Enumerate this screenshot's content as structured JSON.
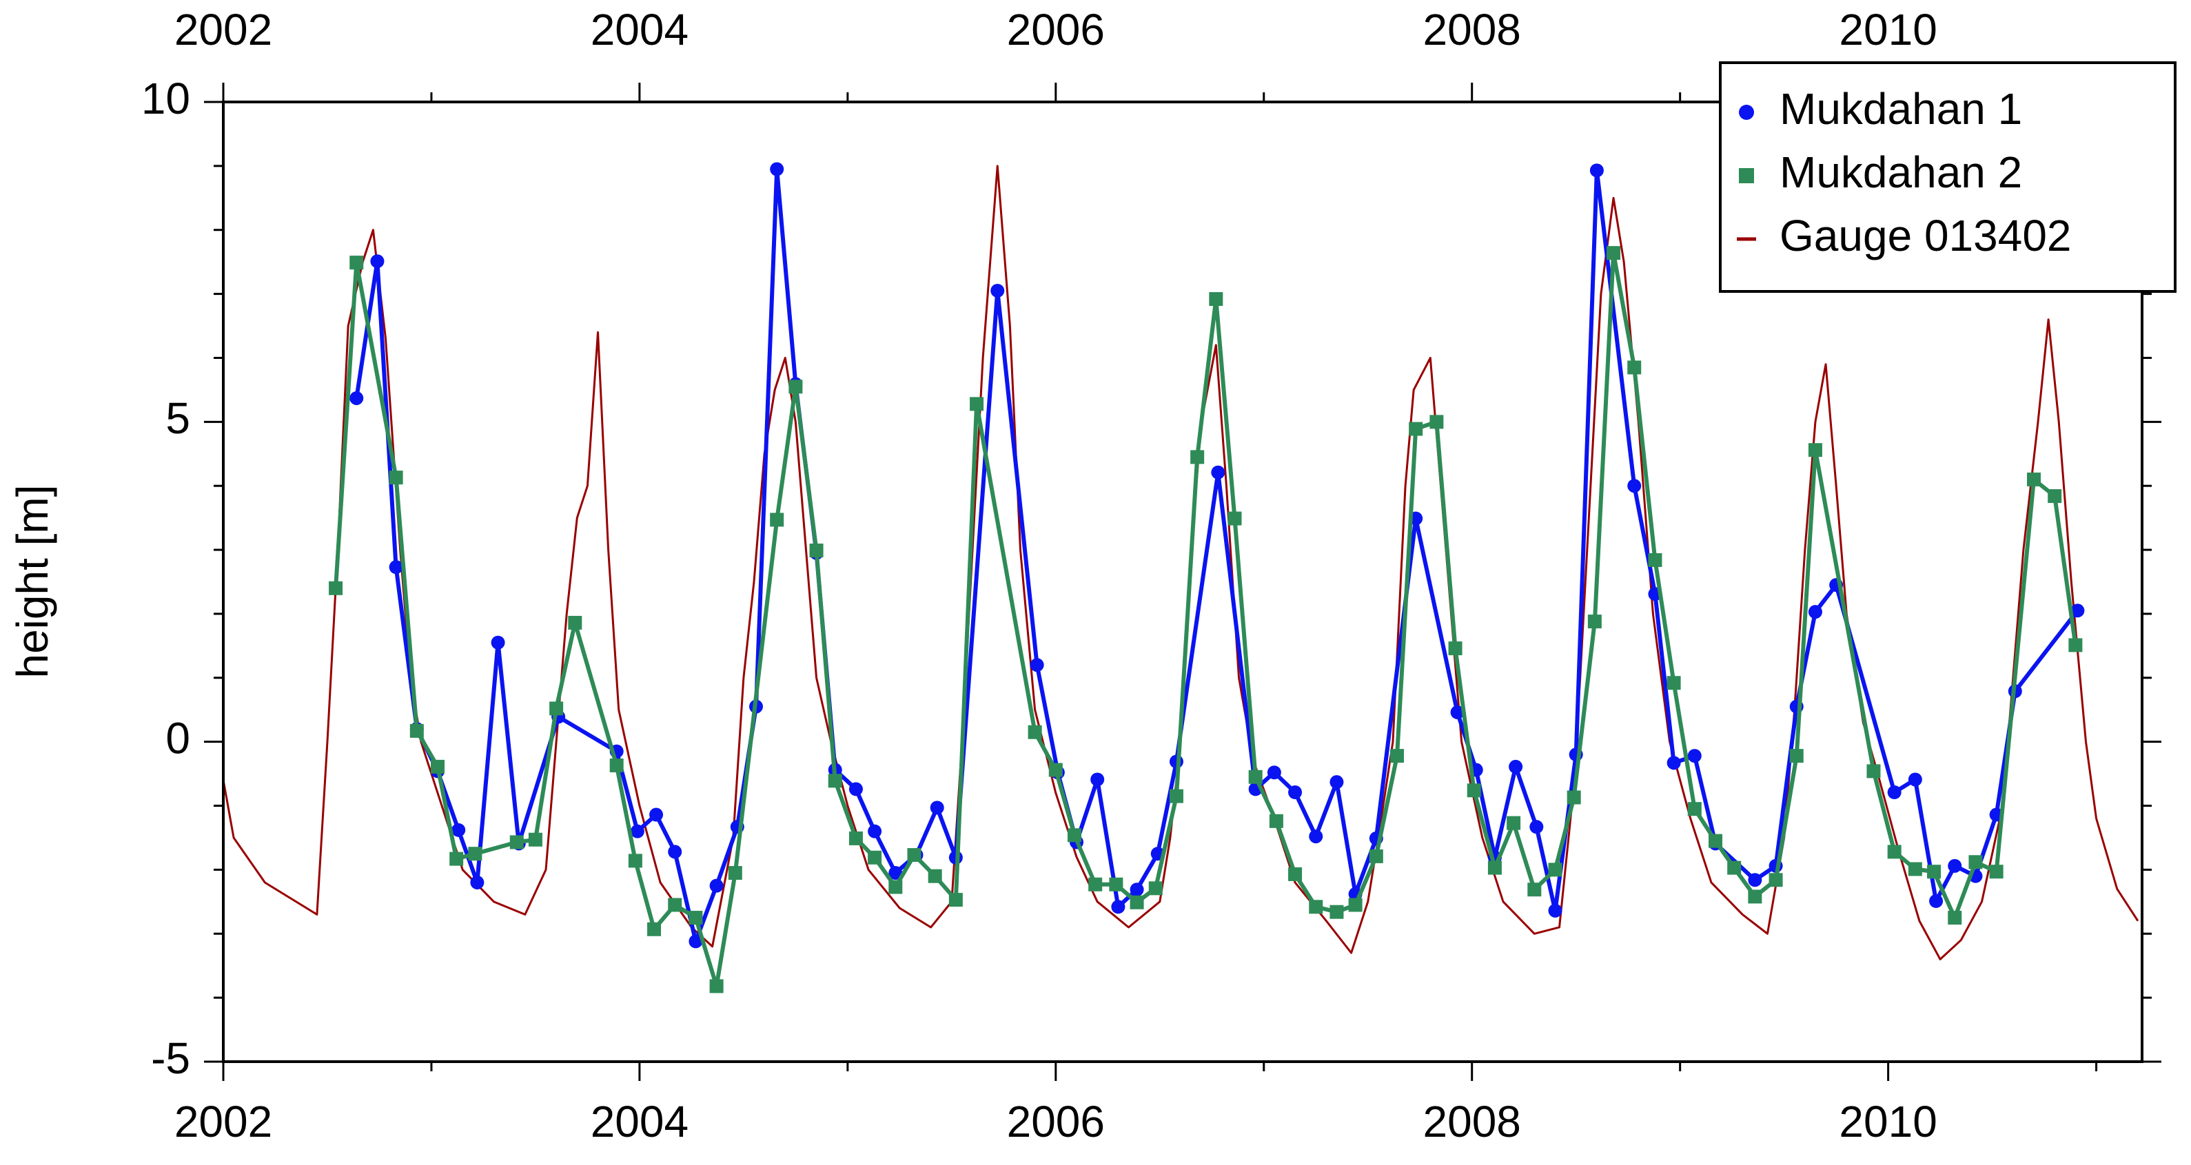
{
  "chart_data": {
    "type": "line",
    "y_label": "height [m]",
    "xlim": [
      2002,
      2011.22
    ],
    "ylim": [
      -5,
      10
    ],
    "xticks": [
      2002,
      2004,
      2006,
      2008,
      2010
    ],
    "xminor_ticks": [
      2003,
      2005,
      2007,
      2009,
      2011
    ],
    "yticks": [
      -5,
      0,
      5,
      10
    ],
    "yminor_ticks": [
      -4,
      -3,
      -2,
      -1,
      1,
      2,
      3,
      4,
      6,
      7,
      8,
      9
    ],
    "legend": "upper right",
    "series": [
      {
        "name": "Mukdahan 1",
        "color": "#0a14f0",
        "marker": "circle",
        "x": [
          2002.64,
          2002.74,
          2002.83,
          2002.93,
          2003.03,
          2003.13,
          2003.22,
          2003.32,
          2003.42,
          2003.61,
          2003.89,
          2003.99,
          2004.08,
          2004.17,
          2004.27,
          2004.37,
          2004.47,
          2004.56,
          2004.66,
          2004.75,
          2004.85,
          2004.94,
          2005.04,
          2005.13,
          2005.23,
          2005.33,
          2005.43,
          2005.52,
          2005.72,
          2005.91,
          2006.01,
          2006.1,
          2006.2,
          2006.3,
          2006.39,
          2006.49,
          2006.58,
          2006.78,
          2006.96,
          2007.05,
          2007.15,
          2007.25,
          2007.35,
          2007.44,
          2007.54,
          2007.73,
          2007.93,
          2008.02,
          2008.11,
          2008.21,
          2008.31,
          2008.4,
          2008.5,
          2008.6,
          2008.78,
          2008.88,
          2008.97,
          2009.07,
          2009.17,
          2009.36,
          2009.46,
          2009.56,
          2009.65,
          2009.75,
          2010.03,
          2010.13,
          2010.23,
          2010.32,
          2010.42,
          2010.52,
          2010.61,
          2010.91
        ],
        "values": [
          5.37,
          7.51,
          2.73,
          0.2,
          -0.46,
          -1.38,
          -2.2,
          1.55,
          -1.59,
          0.39,
          -0.15,
          -1.4,
          -1.14,
          -1.72,
          -3.12,
          -2.25,
          -1.33,
          0.55,
          8.95,
          5.59,
          2.95,
          -0.44,
          -0.74,
          -1.4,
          -2.05,
          -1.77,
          -1.03,
          -1.81,
          7.05,
          1.2,
          -0.48,
          -1.57,
          -0.59,
          -2.58,
          -2.31,
          -1.75,
          -0.31,
          4.21,
          -0.74,
          -0.48,
          -0.79,
          -1.48,
          -0.63,
          -2.38,
          -1.51,
          3.49,
          0.46,
          -0.44,
          -1.81,
          -0.39,
          -1.33,
          -2.64,
          -0.2,
          8.93,
          4.0,
          2.31,
          -0.33,
          -0.22,
          -1.59,
          -2.16,
          -1.94,
          0.55,
          2.03,
          2.45,
          -0.79,
          -0.59,
          -2.49,
          -1.94,
          -2.1,
          -1.14,
          0.79,
          2.05
        ]
      },
      {
        "name": "Mukdahan 2",
        "color": "#2e8b57",
        "marker": "square",
        "x": [
          2002.54,
          2002.64,
          2002.83,
          2002.93,
          2003.03,
          2003.12,
          2003.21,
          2003.41,
          2003.5,
          2003.6,
          2003.69,
          2003.89,
          2003.98,
          2004.07,
          2004.17,
          2004.27,
          2004.37,
          2004.46,
          2004.66,
          2004.75,
          2004.85,
          2004.94,
          2005.04,
          2005.13,
          2005.23,
          2005.32,
          2005.42,
          2005.52,
          2005.62,
          2005.9,
          2006.0,
          2006.09,
          2006.19,
          2006.29,
          2006.39,
          2006.48,
          2006.58,
          2006.68,
          2006.77,
          2006.86,
          2006.96,
          2007.06,
          2007.15,
          2007.25,
          2007.35,
          2007.44,
          2007.54,
          2007.64,
          2007.73,
          2007.83,
          2007.92,
          2008.01,
          2008.11,
          2008.2,
          2008.3,
          2008.4,
          2008.49,
          2008.59,
          2008.68,
          2008.78,
          2008.88,
          2008.97,
          2009.07,
          2009.17,
          2009.26,
          2009.36,
          2009.46,
          2009.56,
          2009.65,
          2009.93,
          2010.03,
          2010.13,
          2010.22,
          2010.32,
          2010.42,
          2010.52,
          2010.7,
          2010.8,
          2010.9
        ],
        "values": [
          2.4,
          7.49,
          4.13,
          0.17,
          -0.39,
          -1.83,
          -1.75,
          -1.57,
          -1.53,
          0.52,
          1.86,
          -0.37,
          -1.86,
          -2.93,
          -2.55,
          -2.75,
          -3.82,
          -2.05,
          3.47,
          5.55,
          2.99,
          -0.61,
          -1.51,
          -1.81,
          -2.27,
          -1.77,
          -2.1,
          -2.47,
          5.28,
          0.15,
          -0.44,
          -1.46,
          -2.23,
          -2.23,
          -2.51,
          -2.29,
          -0.85,
          4.45,
          6.92,
          3.49,
          -0.55,
          -1.24,
          -2.07,
          -2.58,
          -2.66,
          -2.55,
          -1.79,
          -0.22,
          4.89,
          5.0,
          1.46,
          -0.76,
          -1.97,
          -1.27,
          -2.31,
          -2.0,
          -0.87,
          1.88,
          7.64,
          5.85,
          2.84,
          0.92,
          -1.05,
          -1.55,
          -1.97,
          -2.42,
          -2.16,
          -0.22,
          4.56,
          -0.46,
          -1.72,
          -1.99,
          -2.03,
          -2.75,
          -1.88,
          -2.03,
          4.1,
          3.84,
          1.51
        ]
      },
      {
        "name": "Gauge 013402",
        "color": "#990000",
        "marker": "none",
        "x": [
          2002.0,
          2002.05,
          2002.2,
          2002.45,
          2002.5,
          2002.55,
          2002.6,
          2002.67,
          2002.72,
          2002.78,
          2002.85,
          2002.9,
          2002.95,
          2003.05,
          2003.15,
          2003.3,
          2003.45,
          2003.55,
          2003.6,
          2003.65,
          2003.7,
          2003.75,
          2003.8,
          2003.85,
          2003.9,
          2004.0,
          2004.1,
          2004.25,
          2004.35,
          2004.45,
          2004.5,
          2004.55,
          2004.6,
          2004.65,
          2004.7,
          2004.75,
          2004.8,
          2004.85,
          2004.92,
          2005.0,
          2005.1,
          2005.25,
          2005.4,
          2005.5,
          2005.55,
          2005.6,
          2005.65,
          2005.72,
          2005.78,
          2005.83,
          2005.9,
          2006.0,
          2006.1,
          2006.2,
          2006.35,
          2006.5,
          2006.55,
          2006.6,
          2006.65,
          2006.7,
          2006.77,
          2006.82,
          2006.88,
          2006.95,
          2007.05,
          2007.15,
          2007.3,
          2007.42,
          2007.5,
          2007.55,
          2007.62,
          2007.68,
          2007.72,
          2007.8,
          2007.85,
          2007.9,
          2007.95,
          2008.05,
          2008.15,
          2008.3,
          2008.42,
          2008.48,
          2008.52,
          2008.57,
          2008.62,
          2008.68,
          2008.73,
          2008.8,
          2008.87,
          2008.95,
          2009.05,
          2009.15,
          2009.3,
          2009.42,
          2009.5,
          2009.55,
          2009.6,
          2009.65,
          2009.7,
          2009.75,
          2009.8,
          2009.88,
          2009.95,
          2010.05,
          2010.15,
          2010.25,
          2010.35,
          2010.45,
          2010.55,
          2010.6,
          2010.65,
          2010.72,
          2010.77,
          2010.82,
          2010.88,
          2010.95,
          2011.0,
          2011.1,
          2011.2
        ],
        "values": [
          -0.6,
          -1.5,
          -2.2,
          -2.7,
          0,
          3,
          6.5,
          7.5,
          8,
          6.3,
          3,
          1,
          0,
          -1,
          -2,
          -2.5,
          -2.7,
          -2,
          0,
          2,
          3.5,
          4,
          6.4,
          3,
          0.5,
          -1,
          -2.2,
          -2.9,
          -3.2,
          -1.5,
          1,
          2.5,
          4.5,
          5.5,
          6,
          5,
          3,
          1,
          0,
          -1,
          -2,
          -2.6,
          -2.9,
          -2.5,
          0,
          3,
          6,
          9,
          6.5,
          3,
          0.5,
          -0.8,
          -1.8,
          -2.5,
          -2.9,
          -2.5,
          -1.5,
          0,
          3,
          5,
          6.2,
          4,
          1,
          -0.3,
          -1.2,
          -2.2,
          -2.8,
          -3.3,
          -2.5,
          -1.5,
          0,
          4,
          5.5,
          6,
          4,
          2,
          0,
          -1.5,
          -2.5,
          -3,
          -2.9,
          -1,
          1,
          4,
          7,
          8.5,
          7.5,
          5,
          2,
          0,
          -1.2,
          -2.2,
          -2.7,
          -3,
          -1.5,
          0.5,
          3,
          5,
          5.9,
          4,
          2,
          0.3,
          -0.5,
          -1.7,
          -2.8,
          -3.4,
          -3.1,
          -2.5,
          -1,
          1,
          3,
          5,
          6.6,
          5,
          2.5,
          0,
          -1.2,
          -2.3,
          -2.8
        ]
      }
    ]
  }
}
